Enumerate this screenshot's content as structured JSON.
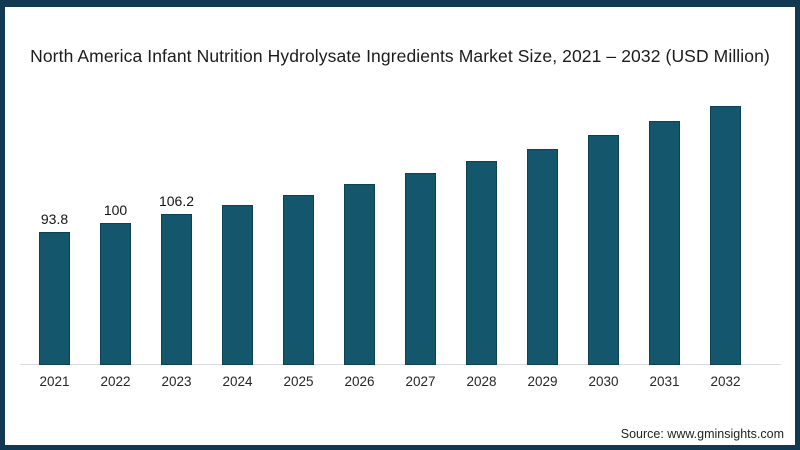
{
  "chart_data": {
    "type": "bar",
    "title": "North America Infant Nutrition Hydrolysate Ingredients Market Size, 2021 – 2032 (USD Million)",
    "categories": [
      "2021",
      "2022",
      "2023",
      "2024",
      "2025",
      "2026",
      "2027",
      "2028",
      "2029",
      "2030",
      "2031",
      "2032"
    ],
    "values": [
      93.8,
      100,
      106.2,
      112.8,
      119.8,
      127.2,
      135.1,
      143.5,
      152.4,
      161.8,
      171.9,
      182.5
    ],
    "data_labels": [
      "93.8",
      "100",
      "106.2",
      "",
      "",
      "",
      "",
      "",
      "",
      "",
      "",
      ""
    ],
    "xlabel": "",
    "ylabel": "",
    "ylim": [
      0,
      190
    ],
    "grid": false,
    "legend": false,
    "bar_color": "#14566B",
    "bar_edge_color": "#0E4156",
    "axis_line_color": "#DCDCDC"
  },
  "frame": {
    "border_color": "#113A52",
    "background": "#FFFFFF"
  },
  "footer": {
    "source": "Source: www.gminsights.com"
  }
}
